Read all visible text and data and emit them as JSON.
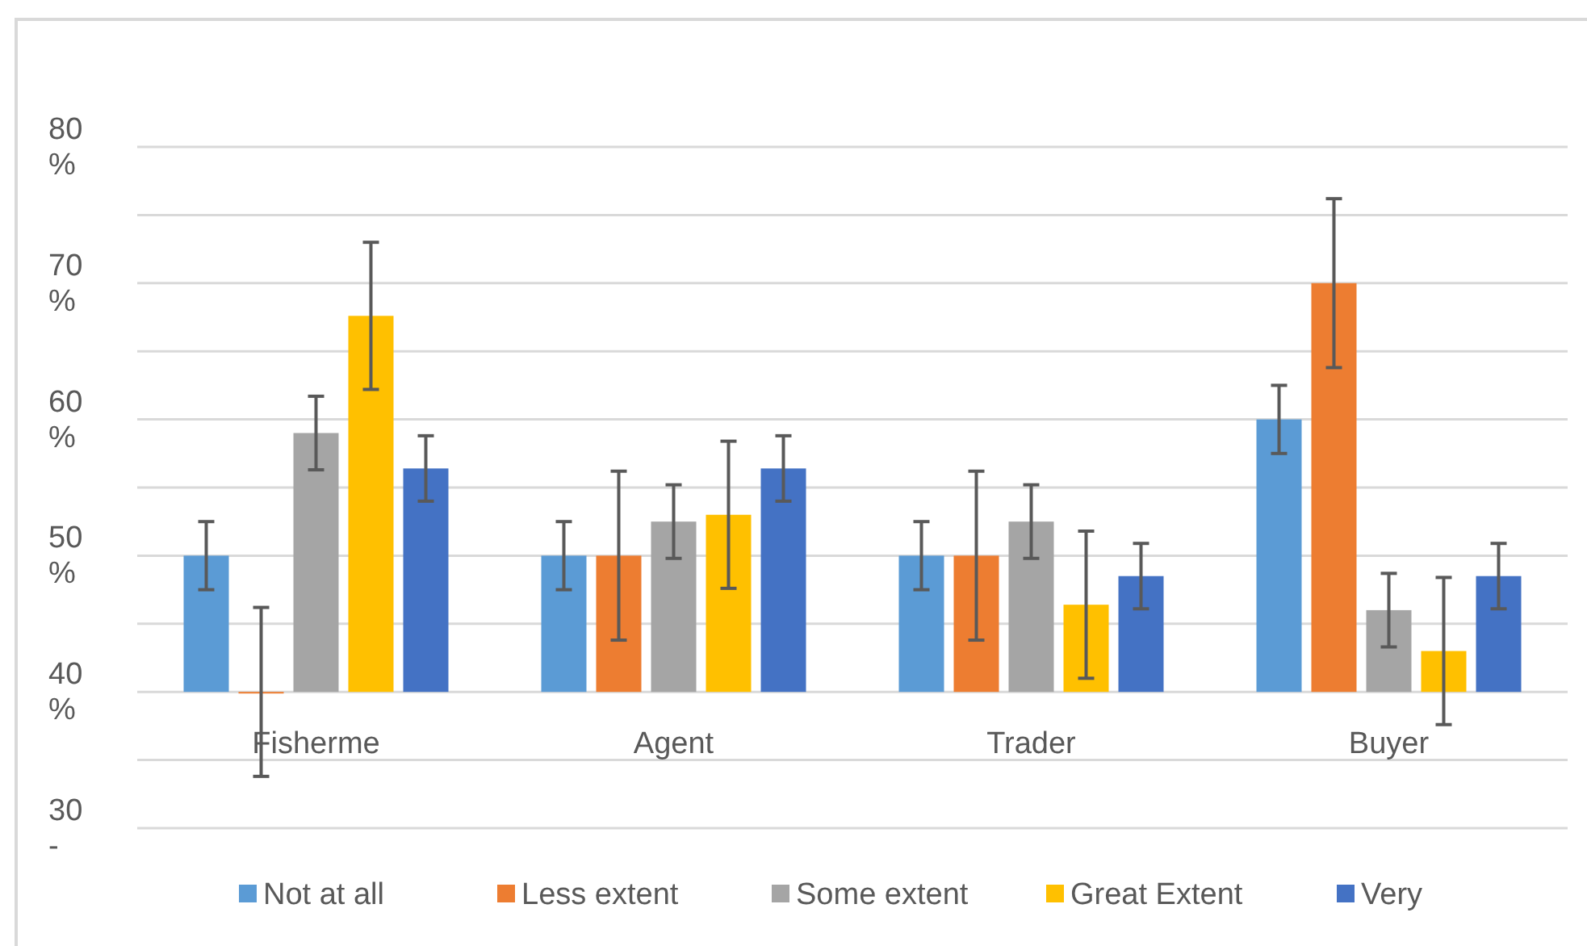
{
  "chart_data": {
    "type": "bar",
    "categories": [
      "Fisherme",
      "Agent",
      "Trader",
      "Buyer"
    ],
    "series": [
      {
        "name": "Not at all",
        "color": "#5b9bd5",
        "values": [
          10,
          10,
          10,
          20
        ],
        "base": [
          40,
          40,
          40,
          40
        ],
        "errors": [
          2.5,
          2.5,
          2.5,
          2.5
        ]
      },
      {
        "name": "Less extent",
        "color": "#ed7d31",
        "values": [
          0,
          10,
          10,
          30
        ],
        "base": [
          40,
          40,
          40,
          40
        ],
        "errors": [
          6.2,
          6.2,
          6.2,
          6.2
        ]
      },
      {
        "name": "Some extent",
        "color": "#a5a5a5",
        "values": [
          19,
          12.5,
          12.5,
          6
        ],
        "base": [
          40,
          40,
          40,
          40
        ],
        "errors": [
          2.7,
          2.7,
          2.7,
          2.7
        ]
      },
      {
        "name": "Great Extent",
        "color": "#ffc000",
        "values": [
          27.6,
          13,
          6.4,
          3
        ],
        "base": [
          40,
          40,
          40,
          40
        ],
        "errors": [
          5.4,
          5.4,
          5.4,
          5.4
        ]
      },
      {
        "name": "Very",
        "color": "#4472c4",
        "values": [
          16.4,
          16.4,
          8.5,
          8.5
        ],
        "base": [
          40,
          40,
          40,
          40
        ],
        "errors": [
          2.4,
          2.4,
          2.4,
          2.4
        ]
      }
    ],
    "ylim": [
      30,
      80
    ],
    "yticks": [
      {
        "value": 80,
        "label": "80 %"
      },
      {
        "value": 75,
        "label": null
      },
      {
        "value": 70,
        "label": "70 %"
      },
      {
        "value": 65,
        "label": null
      },
      {
        "value": 60,
        "label": "60 %"
      },
      {
        "value": 55,
        "label": null
      },
      {
        "value": 50,
        "label": "50 %"
      },
      {
        "value": 45,
        "label": null
      },
      {
        "value": 40,
        "label": "40 %"
      },
      {
        "value": 35,
        "label": null
      },
      {
        "value": 30,
        "label": "30 -"
      }
    ],
    "grid": true,
    "legend": "bottom"
  }
}
